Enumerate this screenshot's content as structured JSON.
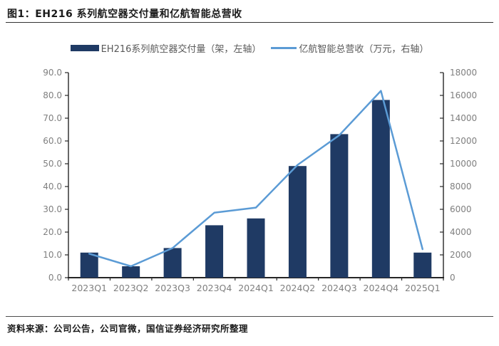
{
  "page": {
    "title": "图1：EH216 系列航空器交付量和亿航智能总营收",
    "source_note": "资料来源：公司公告，公司官微，国信证券经济研究所整理"
  },
  "colors": {
    "bar": "#1f3a64",
    "line": "#5b9bd5",
    "axis_line": "#262626",
    "tick_label": "#7f7f7f",
    "legend_text": "#595959",
    "title_text": "#1a1a1a"
  },
  "chart_data": {
    "type": "combo",
    "title": "图1：EH216 系列航空器交付量和亿航智能总营收",
    "categories": [
      "2023Q1",
      "2023Q2",
      "2023Q3",
      "2023Q4",
      "2024Q1",
      "2024Q2",
      "2024Q3",
      "2024Q4",
      "2025Q1"
    ],
    "series": [
      {
        "name": "EH216系列航空器交付量（架，左轴）",
        "type": "bar",
        "axis": "left",
        "color": "#1f3a64",
        "values": [
          11,
          5,
          13,
          23,
          26,
          49,
          63,
          78,
          11
        ]
      },
      {
        "name": "亿航智能总营收（万元，右轴）",
        "type": "line",
        "axis": "right",
        "color": "#5b9bd5",
        "values": [
          2100,
          1000,
          2600,
          5700,
          6150,
          9900,
          12500,
          16400,
          2500
        ]
      }
    ],
    "left_axis": {
      "min": 0,
      "max": 90,
      "step": 10,
      "decimals": 1
    },
    "right_axis": {
      "min": 0,
      "max": 18000,
      "step": 2000,
      "decimals": 0
    },
    "grid": false,
    "legend_position": "top-center"
  }
}
